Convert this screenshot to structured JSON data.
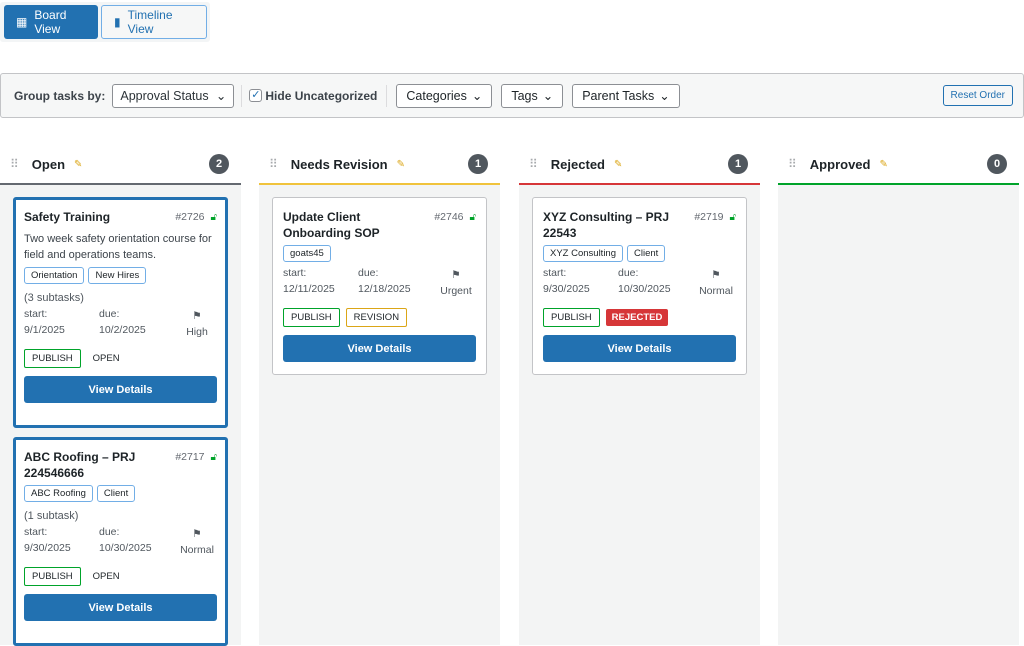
{
  "view_switch": {
    "board": "Board View",
    "timeline": "Timeline View"
  },
  "toolbar": {
    "group_label": "Group tasks by:",
    "group_value": "Approval Status",
    "hide_uncategorized": "Hide Uncategorized",
    "hide_checked": true,
    "categories": "Categories",
    "tags": "Tags",
    "parent_tasks": "Parent Tasks",
    "reset": "Reset Order"
  },
  "colors": {
    "accent": "#2271b1",
    "open": "#646970",
    "revision": "#f0c33c",
    "rejected": "#d63638",
    "approved": "#00a32a"
  },
  "columns": [
    {
      "title": "Open",
      "count": "2",
      "cards": [
        {
          "title": "Safety Training",
          "id": "#2726",
          "desc": "Two week safety orientation course for field and operations teams.",
          "tags": [
            "Orientation",
            "New Hires"
          ],
          "subtasks": "(3 subtasks)",
          "start_label": "start:",
          "start": "9/1/2025",
          "due_label": "due:",
          "due": "10/2/2025",
          "priority": "High",
          "status1": "PUBLISH",
          "status2": "OPEN",
          "button": "View Details"
        },
        {
          "title": "ABC Roofing – PRJ 224546666",
          "id": "#2717",
          "tags": [
            "ABC Roofing",
            "Client"
          ],
          "subtasks": "(1 subtask)",
          "start_label": "start:",
          "start": "9/30/2025",
          "due_label": "due:",
          "due": "10/30/2025",
          "priority": "Normal",
          "status1": "PUBLISH",
          "status2": "OPEN",
          "button": "View Details"
        }
      ]
    },
    {
      "title": "Needs Revision",
      "count": "1",
      "cards": [
        {
          "title": "Update Client Onboarding SOP",
          "id": "#2746",
          "tags": [
            "goats45"
          ],
          "start_label": "start:",
          "start": "12/11/2025",
          "due_label": "due:",
          "due": "12/18/2025",
          "priority": "Urgent",
          "status1": "PUBLISH",
          "status2": "REVISION",
          "button": "View Details"
        }
      ]
    },
    {
      "title": "Rejected",
      "count": "1",
      "cards": [
        {
          "title": "XYZ Consulting – PRJ 22543",
          "id": "#2719",
          "tags": [
            "XYZ Consulting",
            "Client"
          ],
          "start_label": "start:",
          "start": "9/30/2025",
          "due_label": "due:",
          "due": "10/30/2025",
          "priority": "Normal",
          "status1": "PUBLISH",
          "status2": "REJECTED",
          "button": "View Details"
        }
      ]
    },
    {
      "title": "Approved",
      "count": "0",
      "cards": []
    }
  ]
}
